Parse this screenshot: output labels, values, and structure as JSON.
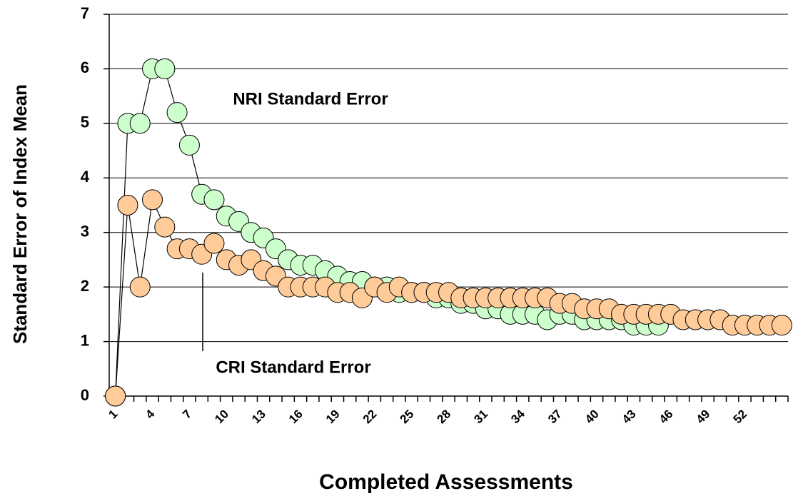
{
  "chart_data": {
    "type": "line",
    "x_label": "Completed Assessments",
    "y_label": "Standard Error of Index Mean",
    "annotations": [
      "NRI Standard Error",
      "CRI Standard Error"
    ],
    "categories": [
      1,
      null,
      null,
      4,
      null,
      null,
      7,
      null,
      null,
      10,
      null,
      null,
      13,
      null,
      null,
      16,
      null,
      null,
      19,
      null,
      null,
      22,
      null,
      null,
      25,
      null,
      null,
      28,
      null,
      null,
      31,
      null,
      null,
      34,
      null,
      null,
      37,
      null,
      null,
      40,
      null,
      null,
      43,
      null,
      null,
      46,
      null,
      null,
      49,
      null,
      null,
      52,
      null,
      null,
      null
    ],
    "series": [
      {
        "name": "NRI Standard Error",
        "color": "#ccffcc",
        "values": [
          0,
          5.0,
          5.0,
          6.0,
          6.0,
          5.2,
          4.6,
          3.7,
          3.6,
          3.3,
          3.2,
          3.0,
          2.9,
          2.7,
          2.5,
          2.4,
          2.4,
          2.3,
          2.2,
          2.1,
          2.1,
          2.0,
          2.0,
          1.9,
          1.9,
          1.9,
          1.8,
          1.8,
          1.7,
          1.7,
          1.6,
          1.6,
          1.5,
          1.5,
          1.5,
          1.4,
          1.5,
          1.5,
          1.4,
          1.4,
          1.4,
          1.4,
          1.3,
          1.3,
          1.3,
          null,
          null,
          null,
          null,
          null,
          null,
          null,
          null,
          null,
          null
        ]
      },
      {
        "name": "CRI Standard Error",
        "color": "#ffcc99",
        "values": [
          0,
          3.5,
          2.0,
          3.6,
          3.1,
          2.7,
          2.7,
          2.6,
          2.8,
          2.5,
          2.4,
          2.5,
          2.3,
          2.2,
          2.0,
          2.0,
          2.0,
          2.0,
          1.9,
          1.9,
          1.8,
          2.0,
          1.9,
          2.0,
          1.9,
          1.9,
          1.9,
          1.9,
          1.8,
          1.8,
          1.8,
          1.8,
          1.8,
          1.8,
          1.8,
          1.8,
          1.7,
          1.7,
          1.6,
          1.6,
          1.6,
          1.5,
          1.5,
          1.5,
          1.5,
          1.5,
          1.4,
          1.4,
          1.4,
          1.4,
          1.3,
          1.3,
          1.3,
          1.3,
          1.3
        ]
      }
    ],
    "ylim": [
      0,
      7
    ],
    "yticks": [
      0,
      1,
      2,
      3,
      4,
      5,
      6,
      7
    ],
    "grid": true
  }
}
